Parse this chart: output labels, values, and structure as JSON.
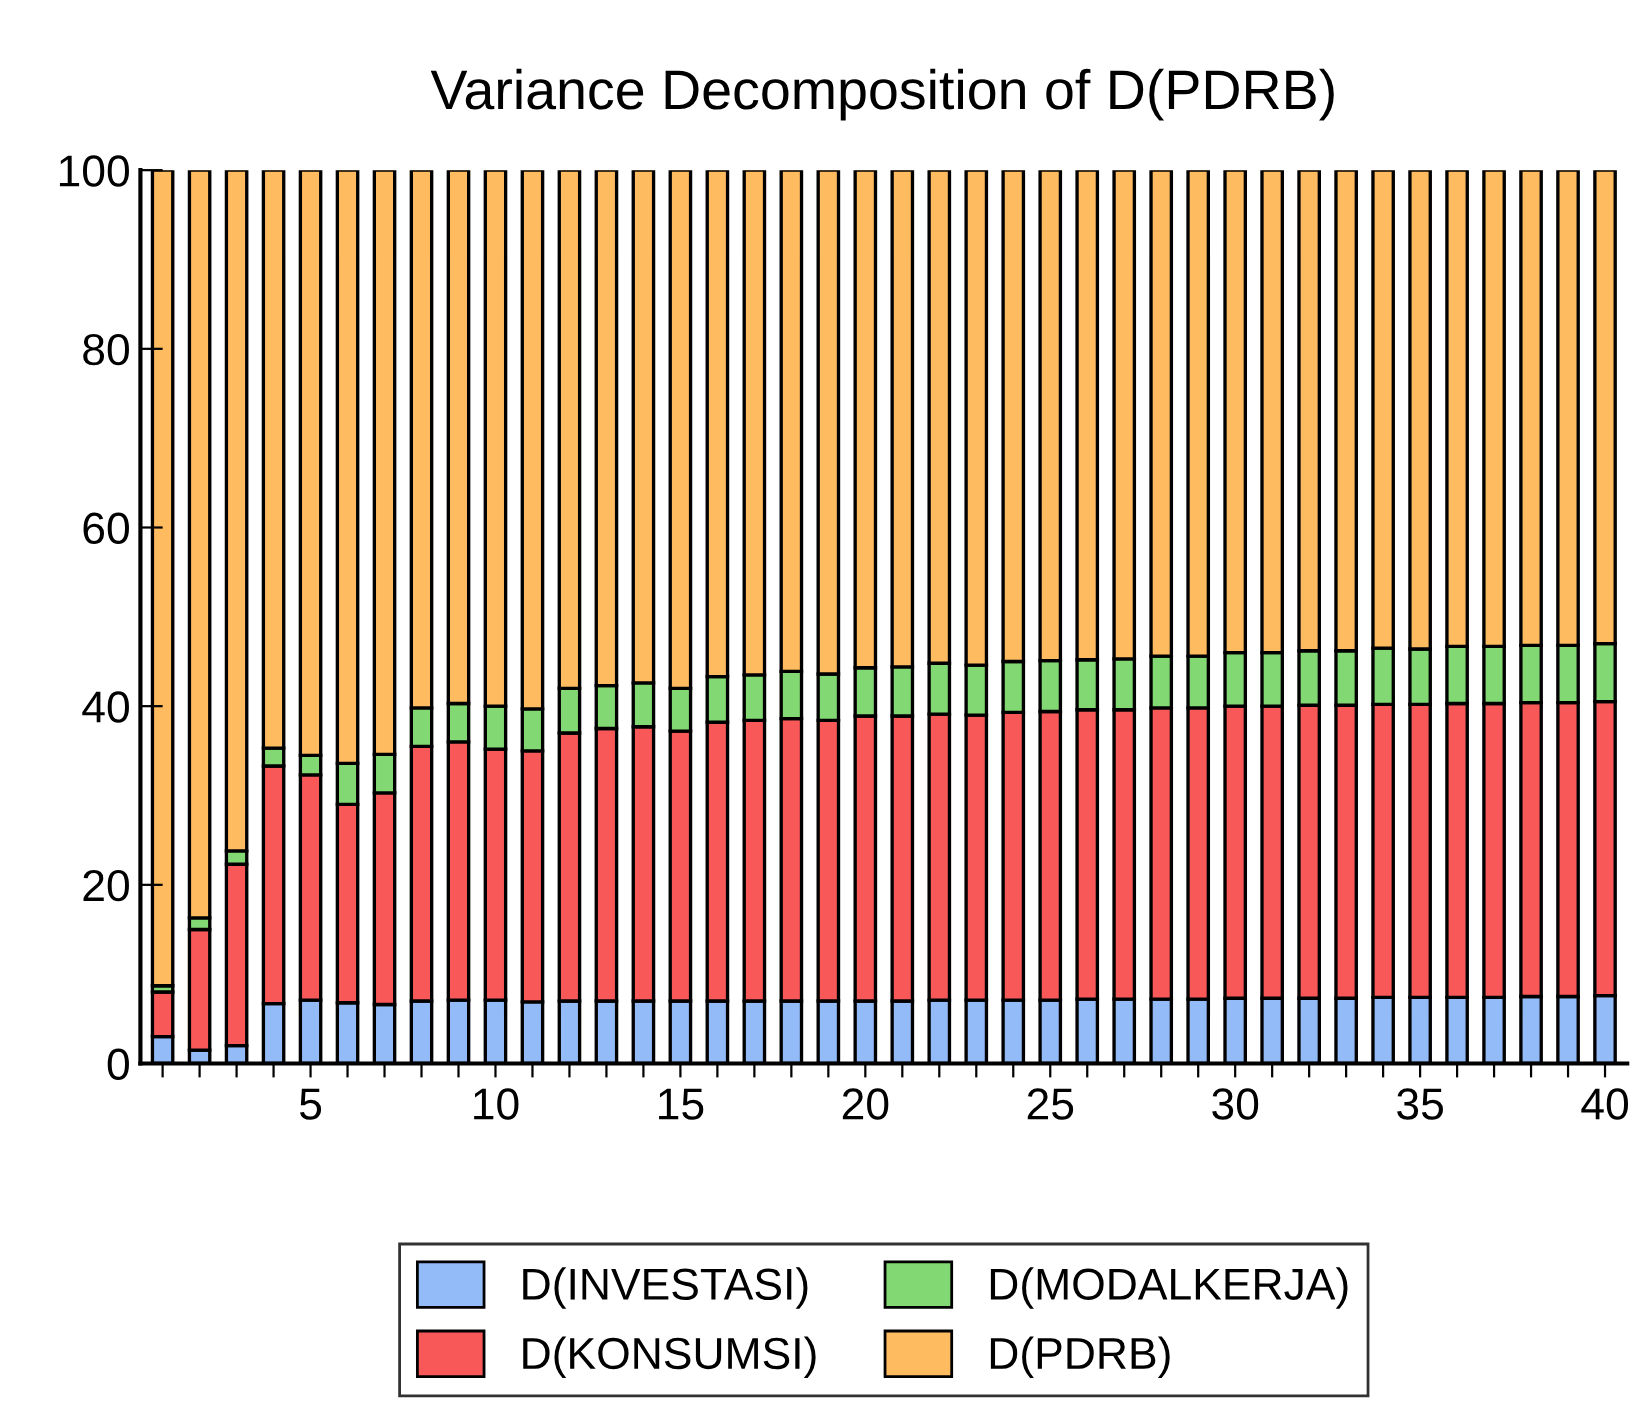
{
  "chart_data": {
    "type": "bar",
    "stacked": true,
    "title": "Variance Decomposition of D(PDRB)",
    "categories": [
      null,
      null,
      null,
      null,
      "5",
      null,
      null,
      null,
      null,
      "10",
      null,
      null,
      null,
      null,
      "15",
      null,
      null,
      null,
      null,
      "20",
      null,
      null,
      null,
      null,
      "25",
      null,
      null,
      null,
      null,
      "30",
      null,
      null,
      null,
      null,
      "35",
      null,
      null,
      null,
      null,
      "40"
    ],
    "series": [
      {
        "name": "D(INVESTASI)",
        "color": "#92bbf7",
        "values": [
          3.0,
          1.5,
          2.0,
          6.7,
          7.1,
          6.8,
          6.6,
          7.0,
          7.1,
          7.1,
          6.9,
          7.0,
          7.0,
          7.0,
          7.0,
          7.0,
          7.0,
          7.0,
          7.0,
          7.0,
          7.0,
          7.1,
          7.1,
          7.1,
          7.1,
          7.2,
          7.2,
          7.2,
          7.2,
          7.3,
          7.3,
          7.3,
          7.3,
          7.4,
          7.4,
          7.4,
          7.4,
          7.5,
          7.5,
          7.6
        ]
      },
      {
        "name": "D(KONSUMSI)",
        "color": "#f85858",
        "values": [
          5.0,
          13.5,
          20.3,
          26.6,
          25.2,
          22.2,
          23.7,
          28.5,
          28.9,
          28.1,
          28.1,
          30.0,
          30.5,
          30.7,
          30.2,
          31.2,
          31.4,
          31.6,
          31.4,
          31.9,
          31.9,
          32.0,
          31.9,
          32.2,
          32.3,
          32.4,
          32.4,
          32.6,
          32.6,
          32.7,
          32.7,
          32.8,
          32.8,
          32.8,
          32.8,
          32.9,
          32.9,
          32.9,
          32.9,
          32.9
        ]
      },
      {
        "name": "D(MODALKERJA)",
        "color": "#82d872",
        "values": [
          0.7,
          1.3,
          1.5,
          2.0,
          2.2,
          4.6,
          4.3,
          4.3,
          4.3,
          4.8,
          4.7,
          5.0,
          4.8,
          4.9,
          4.8,
          5.1,
          5.1,
          5.3,
          5.2,
          5.4,
          5.5,
          5.7,
          5.6,
          5.7,
          5.7,
          5.6,
          5.7,
          5.8,
          5.8,
          6.0,
          6.0,
          6.1,
          6.1,
          6.3,
          6.2,
          6.4,
          6.4,
          6.4,
          6.4,
          6.5
        ]
      },
      {
        "name": "D(PDRB)",
        "color": "#ffbb60",
        "values": [
          91.3,
          83.7,
          76.2,
          64.7,
          65.5,
          66.4,
          65.4,
          60.2,
          59.7,
          60.0,
          60.3,
          58.0,
          57.7,
          57.4,
          58.0,
          56.7,
          56.5,
          56.1,
          56.4,
          55.7,
          55.6,
          55.2,
          55.4,
          55.0,
          54.9,
          54.8,
          54.7,
          54.4,
          54.4,
          54.0,
          54.0,
          53.8,
          53.8,
          53.5,
          53.6,
          53.3,
          53.3,
          53.2,
          53.2,
          53.0
        ]
      }
    ],
    "ylim": [
      0,
      100
    ],
    "yticks": [
      0,
      20,
      40,
      60,
      80,
      100
    ],
    "grid": false,
    "legend": "bottom"
  }
}
